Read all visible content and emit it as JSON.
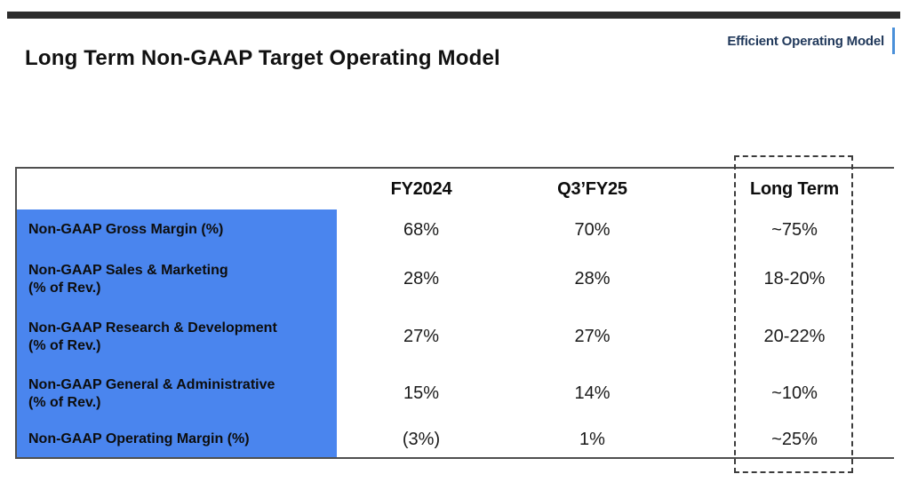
{
  "header": {
    "title": "Long Term Non-GAAP Target Operating Model",
    "badge_label": "Efficient Operating Model"
  },
  "table": {
    "column_headers": [
      "FY2024",
      "Q3’FY25",
      "Long Term"
    ],
    "highlighted_column": "Long Term",
    "rows": [
      {
        "label_line1": "Non-GAAP Gross Margin (%)",
        "label_line2": "",
        "fy2024": "68%",
        "q3_fy25": "70%",
        "long_term": "~75%"
      },
      {
        "label_line1": "Non-GAAP Sales & Marketing",
        "label_line2": "(% of Rev.)",
        "fy2024": "28%",
        "q3_fy25": "28%",
        "long_term": "18-20%"
      },
      {
        "label_line1": "Non-GAAP Research & Development",
        "label_line2": "(% of Rev.)",
        "fy2024": "27%",
        "q3_fy25": "27%",
        "long_term": "20-22%"
      },
      {
        "label_line1": "Non-GAAP General & Administrative",
        "label_line2": "(% of Rev.)",
        "fy2024": "15%",
        "q3_fy25": "14%",
        "long_term": "~10%"
      },
      {
        "label_line1": "Non-GAAP Operating Margin (%)",
        "label_line2": "",
        "fy2024": "(3%)",
        "q3_fy25": "1%",
        "long_term": "~25%"
      }
    ]
  },
  "colors": {
    "row-label-bg": "#4A85EE",
    "badge-text": "#21395B",
    "badge-bar": "#4A90D9",
    "top-bar": "#2D2D2D",
    "table-border": "#4F4F4F",
    "dashed-border": "#3C3C3C",
    "text": "#111111"
  }
}
